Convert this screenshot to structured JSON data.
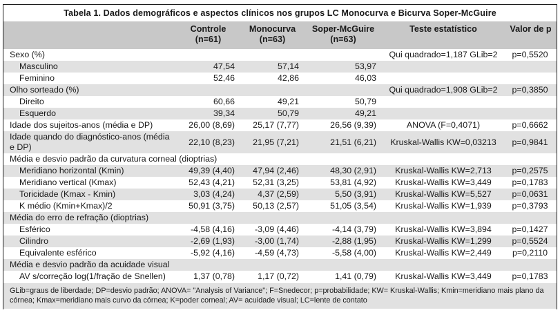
{
  "table": {
    "title": "Tabela 1. Dados demográficos e aspectos clínicos nos grupos LC Monocurva e Bicurva Soper-McGuire",
    "columns": [
      {
        "line1": "Controle",
        "line2": "(n=61)"
      },
      {
        "line1": "Monocurva",
        "line2": "(n=63)"
      },
      {
        "line1": "Soper-McGuire",
        "line2": "(n=63)"
      },
      {
        "line1": "Teste estatístico",
        "line2": ""
      },
      {
        "line1": "Valor de p",
        "line2": ""
      }
    ],
    "rows": [
      {
        "label": "Sexo (%)",
        "indent": false,
        "wide": false,
        "values": [
          "",
          "",
          ""
        ],
        "teste": "Qui quadrado=1,187 GLib=2",
        "p": "p=0,5520"
      },
      {
        "label": "Masculino",
        "indent": true,
        "wide": false,
        "values": [
          "47,54",
          "57,14",
          "53,97"
        ],
        "teste": "",
        "p": ""
      },
      {
        "label": "Feminino",
        "indent": true,
        "wide": false,
        "values": [
          "52,46",
          "42,86",
          "46,03"
        ],
        "teste": "",
        "p": ""
      },
      {
        "label": "Olho sorteado (%)",
        "indent": false,
        "wide": false,
        "values": [
          "",
          "",
          ""
        ],
        "teste": "Qui quadrado=1,908 GLib=2",
        "p": "p=0,3850"
      },
      {
        "label": "Direito",
        "indent": true,
        "wide": false,
        "values": [
          "60,66",
          "49,21",
          "50,79"
        ],
        "teste": "",
        "p": ""
      },
      {
        "label": "Esquerdo",
        "indent": true,
        "wide": false,
        "values": [
          "39,34",
          "50,79",
          "49,21"
        ],
        "teste": "",
        "p": ""
      },
      {
        "label": "Idade dos sujeitos-anos (média e DP)",
        "indent": false,
        "wide": false,
        "values": [
          "26,00 (8,69)",
          "25,17 (7,77)",
          "26,56 (9,39)"
        ],
        "teste": "ANOVA (F=0,4071)",
        "p": "p=0,6662"
      },
      {
        "label": "Idade quando do diagnóstico-anos (média e DP)",
        "indent": false,
        "wide": false,
        "values": [
          "22,10 (8,23)",
          "21,95 (7,21)",
          "21,51 (6,21)"
        ],
        "teste": "Kruskal-Wallis KW=0,03213",
        "p": "p=0,9841"
      },
      {
        "label": "Média e desvio padrão da curvatura corneal (dioptrias)",
        "indent": false,
        "wide": true,
        "values": [
          "",
          "",
          ""
        ],
        "teste": "",
        "p": ""
      },
      {
        "label": "Meridiano horizontal (Kmin)",
        "indent": true,
        "wide": false,
        "values": [
          "49,39 (4,40)",
          "47,94 (2,46)",
          "48,30 (2,91)"
        ],
        "teste": "Kruskal-Wallis KW=2,713",
        "p": "p=0,2575"
      },
      {
        "label": "Meridiano vertical (Kmax)",
        "indent": true,
        "wide": false,
        "values": [
          "52,43 (4,21)",
          "52,31 (3,25)",
          "53,81 (4,92)"
        ],
        "teste": "Kruskal-Wallis KW=3,449",
        "p": "p=0,1783"
      },
      {
        "label": "Toricidade (Kmax - Kmin)",
        "indent": true,
        "wide": false,
        "values": [
          "3,03 (4,24)",
          "4,37 (2,59)",
          "5,50 (3,91)"
        ],
        "teste": "Kruskal-Wallis KW=5,527",
        "p": "p=0,0631"
      },
      {
        "label": "K médio (Kmin+Kmax)/2",
        "indent": true,
        "wide": false,
        "values": [
          "50,91 (3,75)",
          "50,13 (2,57)",
          "51,05 (3,54)"
        ],
        "teste": "Kruskal-Wallis KW=1,939",
        "p": "p=0,3793"
      },
      {
        "label": "Média do erro de refração (dioptrias)",
        "indent": false,
        "wide": true,
        "values": [
          "",
          "",
          ""
        ],
        "teste": "",
        "p": ""
      },
      {
        "label": "Esférico",
        "indent": true,
        "wide": false,
        "values": [
          "-4,58 (4,16)",
          "-3,09 (4,46)",
          "-4,14 (3,79)"
        ],
        "teste": "Kruskal-Wallis KW=3,894",
        "p": "p=0,1427"
      },
      {
        "label": "Cilindro",
        "indent": true,
        "wide": false,
        "values": [
          "-2,69 (1,93)",
          "-3,00 (1,74)",
          "-2,88 (1,95)"
        ],
        "teste": "Kruskal-Wallis KW=1,299",
        "p": "p=0,5524"
      },
      {
        "label": "Equivalente esférico",
        "indent": true,
        "wide": false,
        "values": [
          "-5,92 (4,16)",
          "-4,59 (4,73)",
          "-5,58 (4,00)"
        ],
        "teste": "Kruskal-Wallis KW=2,449",
        "p": "p=0,2110"
      },
      {
        "label": "Média e desvio padrão da acuidade visual",
        "indent": false,
        "wide": true,
        "values": [
          "",
          "",
          ""
        ],
        "teste": "",
        "p": ""
      },
      {
        "label": "AV s/correção log(1/fração de Snellen)",
        "indent": true,
        "wide": false,
        "values": [
          "1,37 (0,78)",
          "1,17 (0,72)",
          "1,41 (0,79)"
        ],
        "teste": "Kruskal-Wallis KW=3,449",
        "p": "p=0,1783"
      }
    ],
    "footnote": "GLib=graus de liberdade; DP=desvio padrão; ANOVA= \"Analysis of Variance\"; F=Snedecor; p=probabilidade; KW= Kruskal-Wallis; Kmin=meridiano mais plano da córnea; Kmax=meridiano mais curvo da córnea; K=poder corneal; AV= acuidade visual; LC=lente de contato"
  },
  "colors": {
    "header_band": "#c8c8c8",
    "row_shade": "#e1e1e1",
    "footnote_band": "#e1e1e1",
    "border": "#1c1c1c"
  }
}
